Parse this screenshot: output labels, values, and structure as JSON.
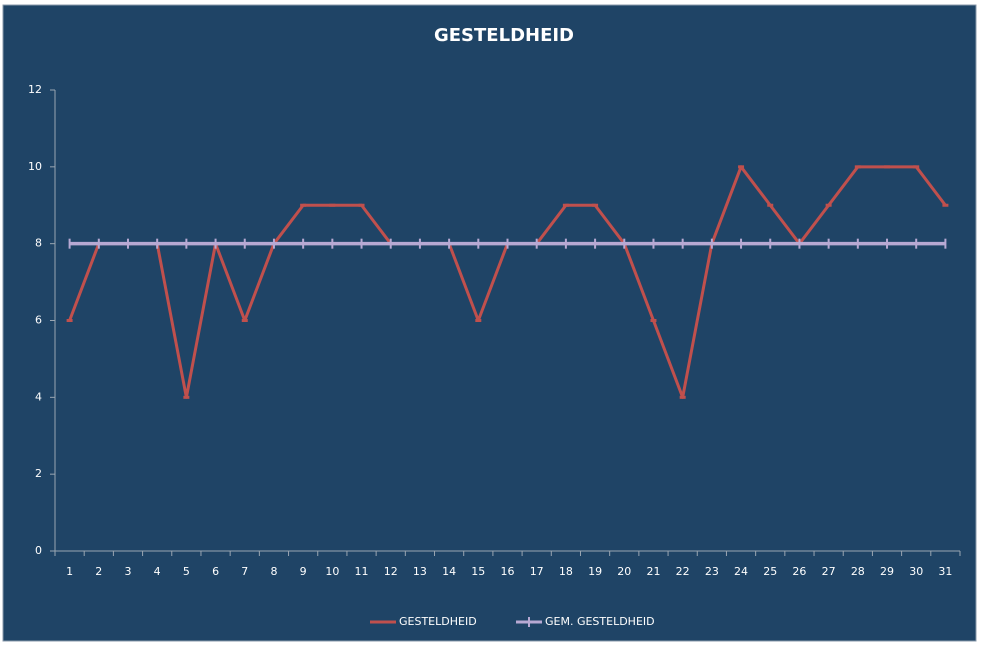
{
  "chart_data": {
    "type": "line",
    "title": "GESTELDHEID",
    "categories": [
      "1",
      "2",
      "3",
      "4",
      "5",
      "6",
      "7",
      "8",
      "9",
      "10",
      "11",
      "12",
      "13",
      "14",
      "15",
      "16",
      "17",
      "18",
      "19",
      "20",
      "21",
      "22",
      "23",
      "24",
      "25",
      "26",
      "27",
      "28",
      "29",
      "30",
      "31"
    ],
    "series": [
      {
        "name": "GESTELDHEID",
        "color": "#c0504d",
        "values": [
          6,
          8,
          8,
          8,
          4,
          8,
          6,
          8,
          9,
          9,
          9,
          8,
          8,
          8,
          6,
          8,
          8,
          9,
          9,
          8,
          6,
          4,
          8,
          10,
          9,
          8,
          9,
          10,
          10,
          10,
          9
        ]
      },
      {
        "name": "GEM. GESTELDHEID",
        "color": "#b7a9d3",
        "values": [
          8,
          8,
          8,
          8,
          8,
          8,
          8,
          8,
          8,
          8,
          8,
          8,
          8,
          8,
          8,
          8,
          8,
          8,
          8,
          8,
          8,
          8,
          8,
          8,
          8,
          8,
          8,
          8,
          8,
          8,
          8
        ]
      }
    ],
    "ylim": [
      0,
      12
    ],
    "yticks": [
      0,
      2,
      4,
      6,
      8,
      10,
      12
    ],
    "legend": "bottom"
  }
}
